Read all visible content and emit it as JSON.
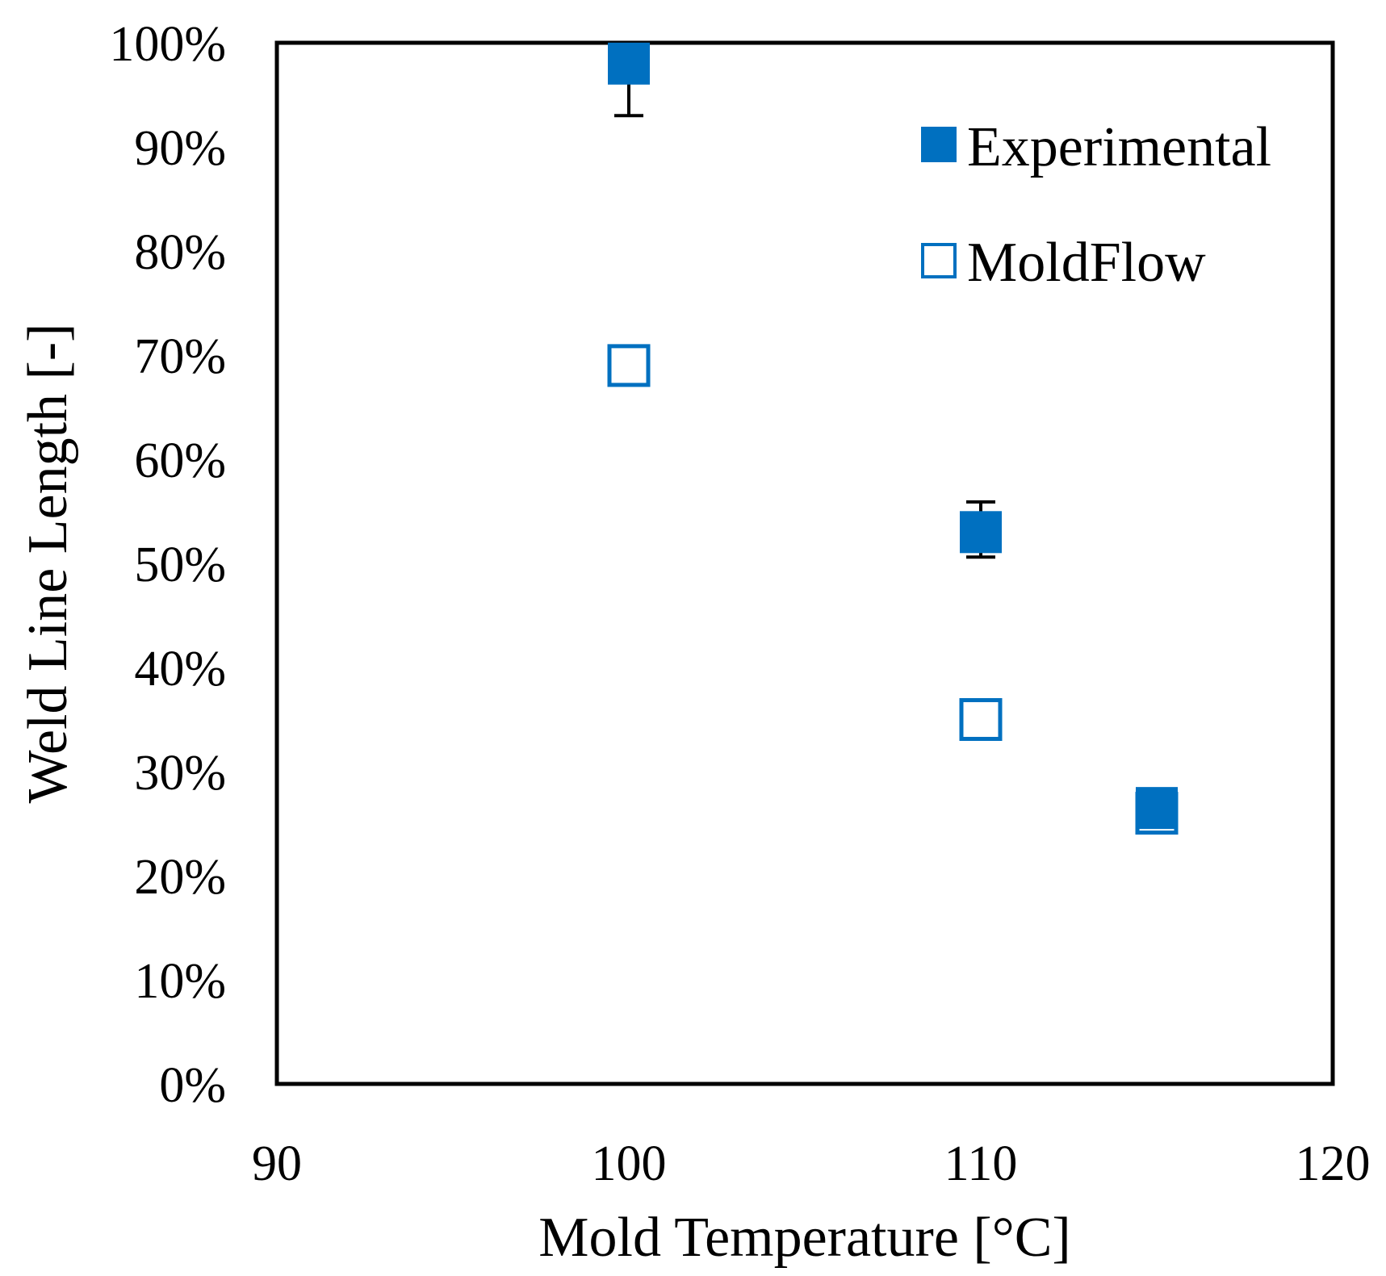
{
  "chart_data": {
    "type": "scatter",
    "title": "",
    "xlabel": "Mold Temperature [°C]",
    "ylabel": "Weld Line Length [-]",
    "xlim": [
      90,
      120
    ],
    "ylim": [
      0,
      1
    ],
    "x_ticks": [
      "90",
      "100",
      "110",
      "120"
    ],
    "y_ticks": [
      "0%",
      "10%",
      "20%",
      "30%",
      "40%",
      "50%",
      "60%",
      "70%",
      "80%",
      "90%",
      "100%"
    ],
    "legend_position": "top-right",
    "grid": false,
    "series": [
      {
        "name": "Experimental",
        "marker": "filled-square",
        "color": "#0070C0",
        "points": [
          {
            "x": 100,
            "y": 0.98,
            "err_low": 0.05,
            "err_high": 0.0
          },
          {
            "x": 110,
            "y": 0.53,
            "err_low": 0.024,
            "err_high": 0.029
          },
          {
            "x": 115,
            "y": 0.265,
            "err_low": 0.0,
            "err_high": 0.0
          }
        ]
      },
      {
        "name": "MoldFlow",
        "marker": "open-square",
        "color": "#0070C0",
        "points": [
          {
            "x": 100,
            "y": 0.69
          },
          {
            "x": 110,
            "y": 0.35
          },
          {
            "x": 115,
            "y": 0.26
          }
        ]
      }
    ]
  }
}
